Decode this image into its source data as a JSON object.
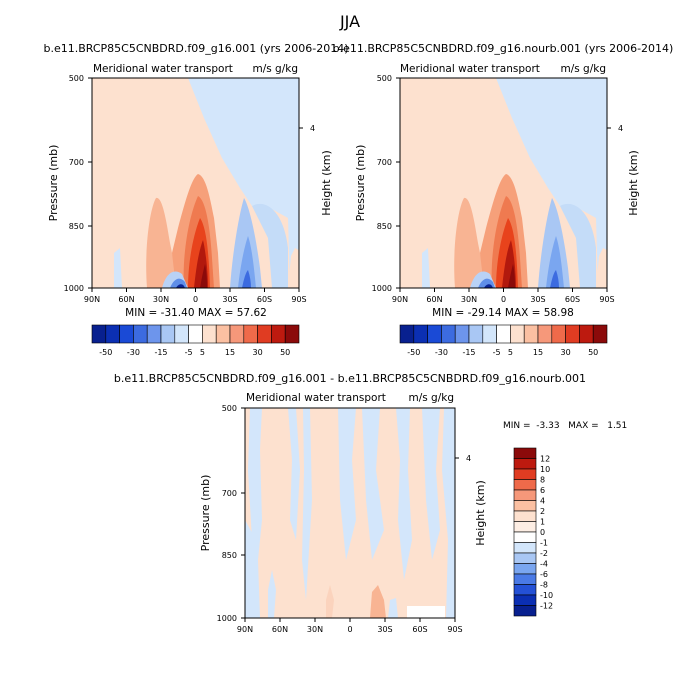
{
  "figure_title": "JJA",
  "colors": {
    "pos_large": "#8b0a0a",
    "pos_mid": "#e8431c",
    "pos_small": "#fde1cf",
    "neg_small": "#d3e6fb",
    "neg_mid": "#7aa6f0",
    "neg_large": "#0b2596"
  },
  "chart_data": [
    {
      "type": "heatmap",
      "id": "p1",
      "title": "b.e11.BRCP85C5CNBDRD.f09_g16.001 (yrs 2006-2014)",
      "left_label": "Meridional water transport",
      "right_label": "m/s g/kg",
      "ylabel": "Pressure (mb)",
      "ylabel_right": "Height (km)",
      "yticks": [
        500,
        700,
        850,
        1000
      ],
      "ytick_labels": [
        "500",
        "700",
        "850",
        "1000"
      ],
      "right_ticks": [
        "4"
      ],
      "xtick_labels": [
        "90N",
        "60N",
        "30N",
        "0",
        "30S",
        "60S",
        "90S"
      ],
      "ylim": [
        1000,
        500
      ],
      "minmax": "MIN = -31.40   MAX =  57.62",
      "colorbar": {
        "orientation": "horizontal",
        "labels": [
          "-50",
          "-30",
          "-15",
          "-5",
          "5",
          "15",
          "30",
          "50"
        ]
      }
    },
    {
      "type": "heatmap",
      "id": "p2",
      "title": "b.e11.BRCP85C5CNBDRD.f09_g16.nourb.001 (yrs 2006-2014)",
      "left_label": "Meridional water transport",
      "right_label": "m/s g/kg",
      "ylabel": "Pressure (mb)",
      "ylabel_right": "Height (km)",
      "yticks": [
        500,
        700,
        850,
        1000
      ],
      "ytick_labels": [
        "500",
        "700",
        "850",
        "1000"
      ],
      "right_ticks": [
        "4"
      ],
      "xtick_labels": [
        "90N",
        "60N",
        "30N",
        "0",
        "30S",
        "60S",
        "90S"
      ],
      "ylim": [
        1000,
        500
      ],
      "minmax": "MIN = -29.14   MAX =  58.98",
      "colorbar": {
        "orientation": "horizontal",
        "labels": [
          "-50",
          "-30",
          "-15",
          "-5",
          "5",
          "15",
          "30",
          "50"
        ]
      }
    },
    {
      "type": "heatmap",
      "id": "p3",
      "title": "b.e11.BRCP85C5CNBDRD.f09_g16.001 - b.e11.BRCP85C5CNBDRD.f09_g16.nourb.001",
      "left_label": "Meridional water transport",
      "right_label": "m/s g/kg",
      "ylabel": "Pressure (mb)",
      "ylabel_right": "Height (km)",
      "yticks": [
        500,
        700,
        850,
        1000
      ],
      "ytick_labels": [
        "500",
        "700",
        "850",
        "1000"
      ],
      "right_ticks": [
        "4"
      ],
      "xtick_labels": [
        "90N",
        "60N",
        "30N",
        "0",
        "30S",
        "60S",
        "90S"
      ],
      "ylim": [
        1000,
        500
      ],
      "minmax": "MIN =  -3.33   MAX =   1.51",
      "colorbar": {
        "orientation": "vertical",
        "labels": [
          "12",
          "10",
          "8",
          "6",
          "4",
          "2",
          "1",
          "0",
          "-1",
          "-2",
          "-4",
          "-6",
          "-8",
          "-10",
          "-12"
        ]
      }
    }
  ]
}
